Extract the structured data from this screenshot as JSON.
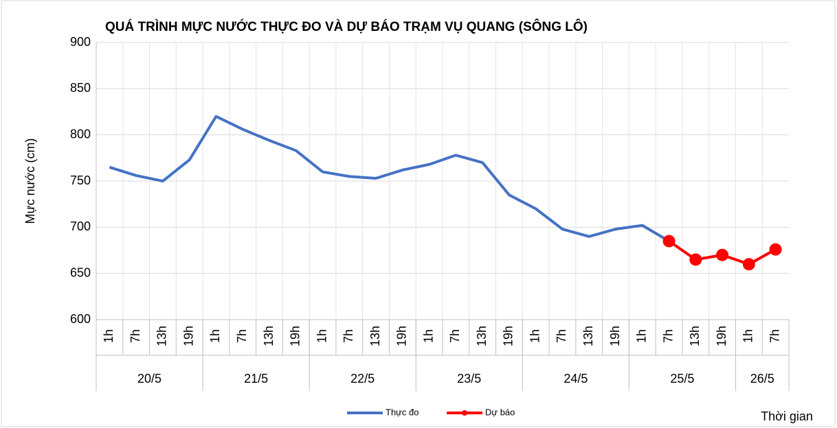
{
  "chart_data": {
    "type": "line",
    "title": "QUÁ TRÌNH MỰC NƯỚC THỰC ĐO VÀ DỰ BÁO TRẠM VỤ QUANG (SÔNG LÔ)",
    "y_label": "Mực nước (cm)",
    "x_label": "Thời gian",
    "categories": [
      "1h",
      "7h",
      "13h",
      "19h",
      "1h",
      "7h",
      "13h",
      "19h",
      "1h",
      "7h",
      "13h",
      "19h",
      "1h",
      "7h",
      "13h",
      "19h",
      "1h",
      "7h",
      "13h",
      "19h",
      "1h",
      "7h",
      "13h",
      "19h",
      "1h",
      "7h"
    ],
    "date_groups": [
      {
        "label": "20/5",
        "count": 4
      },
      {
        "label": "21/5",
        "count": 4
      },
      {
        "label": "22/5",
        "count": 4
      },
      {
        "label": "23/5",
        "count": 4
      },
      {
        "label": "24/5",
        "count": 4
      },
      {
        "label": "25/5",
        "count": 4
      },
      {
        "label": "26/5",
        "count": 2
      }
    ],
    "series": [
      {
        "name": "Thực đo",
        "color": "#4472c4",
        "markers": false,
        "values": [
          765,
          756,
          750,
          773,
          820,
          806,
          794,
          783,
          760,
          755,
          753,
          762,
          768,
          778,
          770,
          735,
          720,
          698,
          690,
          698,
          702,
          685,
          null,
          null,
          null,
          null
        ]
      },
      {
        "name": "Dự báo",
        "color": "#ff0000",
        "markers": true,
        "values": [
          null,
          null,
          null,
          null,
          null,
          null,
          null,
          null,
          null,
          null,
          null,
          null,
          null,
          null,
          null,
          null,
          null,
          null,
          null,
          null,
          null,
          685,
          665,
          670,
          660,
          676
        ]
      }
    ],
    "ylim": [
      600,
      900
    ],
    "yticks": [
      600,
      650,
      700,
      750,
      800,
      850,
      900
    ],
    "grid": true,
    "legend": "bottom"
  }
}
